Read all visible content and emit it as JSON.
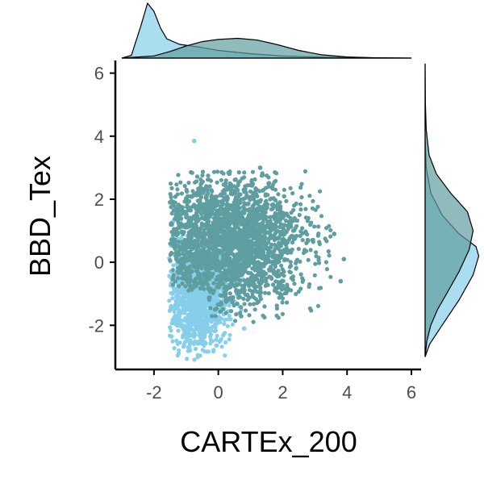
{
  "chart_data": {
    "type": "scatter",
    "title": "",
    "xlabel": "CARTEx_200",
    "ylabel": "BBD_Tex",
    "xlim": [
      -3.2,
      6.3
    ],
    "ylim": [
      -3.4,
      6.4
    ],
    "x_ticks": [
      -2,
      0,
      2,
      4,
      6
    ],
    "y_ticks": [
      -2,
      0,
      2,
      4,
      6
    ],
    "x_tick_labels": [
      "-2",
      "0",
      "2",
      "4",
      "6"
    ],
    "y_tick_labels": [
      "-2",
      "0",
      "2",
      "4",
      "6"
    ],
    "grid": false,
    "legend": "none",
    "marginals": {
      "top": "density",
      "right": "density"
    },
    "series": [
      {
        "color": "#87ceeb",
        "center": [
          -0.6,
          -0.9
        ],
        "spread": [
          0.45,
          0.9
        ],
        "outliers": [
          [
            -0.75,
            3.85
          ],
          [
            -1.3,
            1.6
          ],
          [
            -1.4,
            1.3
          ],
          [
            0.8,
            -2.1
          ]
        ],
        "x_density": [
          [
            -3.0,
            0.0
          ],
          [
            -2.7,
            0.05
          ],
          [
            -2.4,
            0.6
          ],
          [
            -2.2,
            1.0
          ],
          [
            -2.0,
            0.85
          ],
          [
            -1.8,
            0.55
          ],
          [
            -1.6,
            0.35
          ],
          [
            -1.2,
            0.25
          ],
          [
            -0.6,
            0.2
          ],
          [
            0.0,
            0.14
          ],
          [
            1.0,
            0.08
          ],
          [
            2.0,
            0.04
          ],
          [
            3.0,
            0.02
          ],
          [
            4.0,
            0.01
          ],
          [
            6.0,
            0.0
          ]
        ],
        "y_density": [
          [
            -3.0,
            0.0
          ],
          [
            -2.6,
            0.08
          ],
          [
            -2.0,
            0.3
          ],
          [
            -1.2,
            0.6
          ],
          [
            -0.4,
            0.85
          ],
          [
            0.2,
            0.95
          ],
          [
            0.5,
            0.9
          ],
          [
            0.9,
            0.6
          ],
          [
            1.5,
            0.3
          ],
          [
            2.2,
            0.1
          ],
          [
            3.0,
            0.02
          ],
          [
            4.0,
            0.0
          ],
          [
            6.3,
            0.0
          ]
        ]
      },
      {
        "color": "#5f9ea0",
        "center": [
          0.3,
          0.7
        ],
        "spread": [
          1.2,
          1.0
        ],
        "outliers": [
          [
            3.9,
            0.1
          ],
          [
            3.8,
            -0.6
          ],
          [
            3.6,
            0.9
          ],
          [
            1.3,
            3.0
          ],
          [
            -1.5,
            1.9
          ]
        ],
        "x_density": [
          [
            -3.0,
            0.0
          ],
          [
            -2.0,
            0.04
          ],
          [
            -1.5,
            0.12
          ],
          [
            -1.0,
            0.22
          ],
          [
            -0.5,
            0.3
          ],
          [
            0.0,
            0.34
          ],
          [
            0.6,
            0.36
          ],
          [
            1.2,
            0.33
          ],
          [
            1.8,
            0.25
          ],
          [
            2.5,
            0.14
          ],
          [
            3.2,
            0.06
          ],
          [
            4.0,
            0.02
          ],
          [
            5.0,
            0.005
          ],
          [
            6.0,
            0.0
          ]
        ],
        "y_density": [
          [
            -3.0,
            0.0
          ],
          [
            -2.5,
            0.03
          ],
          [
            -2.0,
            0.1
          ],
          [
            -1.5,
            0.22
          ],
          [
            -1.0,
            0.38
          ],
          [
            -0.3,
            0.6
          ],
          [
            0.4,
            0.78
          ],
          [
            1.0,
            0.85
          ],
          [
            1.6,
            0.75
          ],
          [
            2.2,
            0.45
          ],
          [
            2.8,
            0.2
          ],
          [
            3.4,
            0.07
          ],
          [
            4.2,
            0.02
          ],
          [
            5.0,
            0.005
          ],
          [
            6.3,
            0.0
          ]
        ]
      }
    ]
  }
}
